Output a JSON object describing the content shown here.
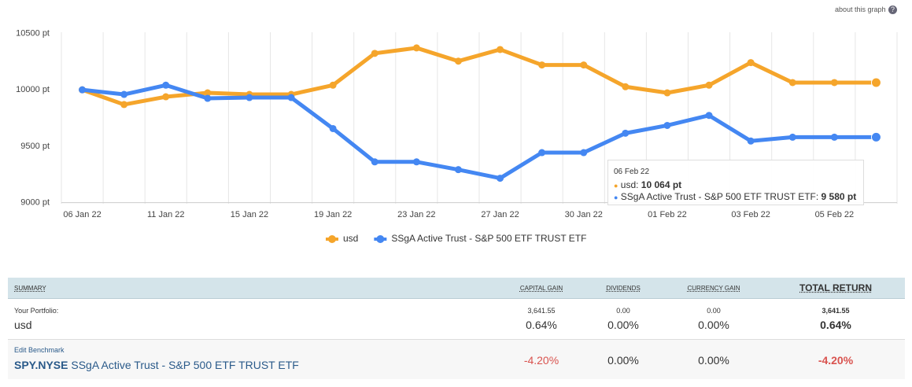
{
  "header": {
    "about": "about this graph",
    "help": "?"
  },
  "chart_data": {
    "type": "line",
    "categories": [
      "06 Jan 22",
      null,
      "11 Jan 22",
      null,
      "15 Jan 22",
      null,
      "19 Jan 22",
      null,
      "23 Jan 22",
      null,
      "27 Jan 22",
      null,
      "30 Jan 22",
      null,
      "01 Feb 22",
      null,
      "03 Feb 22",
      null,
      "05 Feb 22",
      null
    ],
    "series": [
      {
        "name": "usd",
        "color": "#f5a52b",
        "values": [
          10000,
          9869,
          9938,
          9973,
          9959,
          9959,
          10041,
          10323,
          10371,
          10254,
          10357,
          10220,
          10220,
          10027,
          9973,
          10041,
          10241,
          10064,
          10064,
          10064
        ]
      },
      {
        "name": "SSgA Active Trust - S&P 500 ETF TRUST ETF",
        "color": "#4487f2",
        "values": [
          10000,
          9959,
          10041,
          9924,
          9931,
          9931,
          9656,
          9361,
          9361,
          9292,
          9216,
          9443,
          9443,
          9615,
          9684,
          9773,
          9546,
          9580,
          9580,
          9580
        ]
      }
    ],
    "ylim": [
      8990,
      10510
    ],
    "yticks": [
      {
        "value": 9000,
        "label": "9000 pt"
      },
      {
        "value": 9500,
        "label": "9500 pt"
      },
      {
        "value": 10000,
        "label": "10000 pt"
      },
      {
        "value": 10500,
        "label": "10500 pt"
      }
    ],
    "grid": true,
    "legend": "bottom"
  },
  "tooltip": {
    "date": "06 Feb 22",
    "rows": [
      {
        "name": "usd: ",
        "value": "10 064 pt"
      },
      {
        "name": "SSgA Active Trust - S&P 500 ETF TRUST ETF: ",
        "value": "9 580 pt"
      }
    ]
  },
  "table": {
    "headers": [
      "SUMMARY",
      "CAPITAL GAIN",
      "DIVIDENDS",
      "CURRENCY GAIN",
      "TOTAL RETURN"
    ],
    "portfolio": {
      "label": "Your Portfolio:",
      "name": "usd",
      "cells": [
        [
          "3,641.55",
          "0.64%"
        ],
        [
          "0.00",
          "0.00%"
        ],
        [
          "0.00",
          "0.00%"
        ],
        [
          "3,641.55",
          "0.64%"
        ]
      ]
    },
    "benchmark": {
      "edit": "Edit Benchmark",
      "ticker": "SPY.NYSE",
      "name": "SSgA Active Trust - S&P 500 ETF TRUST ETF",
      "cells": [
        "-4.20%",
        "0.00%",
        "0.00%",
        "-4.20%"
      ]
    }
  }
}
